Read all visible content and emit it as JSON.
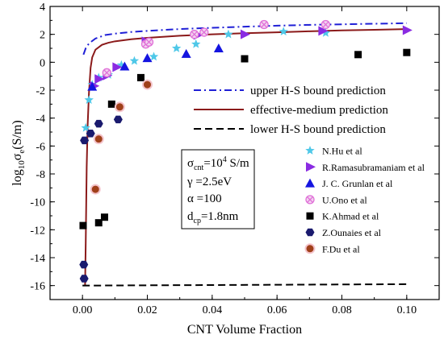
{
  "chart_data": {
    "type": "scatter",
    "xlabel": "CNT Volume Fraction",
    "ylabel": "log10 σe (S/m)",
    "ylabel_parts": {
      "base": "log",
      "sub1": "10",
      "sigma": "σ",
      "sub2": "e",
      "unit": "(S/m)"
    },
    "xlim": [
      -0.01,
      0.11
    ],
    "ylim": [
      -17,
      4
    ],
    "xticks": [
      "0.00",
      "0.02",
      "0.04",
      "0.06",
      "0.08",
      "0.10"
    ],
    "xtick_values": [
      0,
      0.02,
      0.04,
      0.06,
      0.08,
      0.1
    ],
    "yticks": [
      "-16",
      "-14",
      "-12",
      "-10",
      "-8",
      "-6",
      "-4",
      "-2",
      "0",
      "2",
      "4"
    ],
    "ytick_values": [
      -16,
      -14,
      -12,
      -10,
      -8,
      -6,
      -4,
      -2,
      0,
      2,
      4
    ],
    "lines": [
      {
        "name": "upper H-S bound prediction",
        "style": "dashdot",
        "color": "#1f1fd6",
        "x": [
          0.0003,
          0.001,
          0.002,
          0.004,
          0.007,
          0.01,
          0.015,
          0.02,
          0.03,
          0.04,
          0.05,
          0.06,
          0.07,
          0.08,
          0.09,
          0.1
        ],
        "y": [
          0.55,
          1.0,
          1.35,
          1.7,
          1.95,
          2.05,
          2.17,
          2.25,
          2.38,
          2.47,
          2.55,
          2.62,
          2.68,
          2.72,
          2.76,
          2.8
        ]
      },
      {
        "name": "effective-medium prediction",
        "style": "solid",
        "color": "#8b1a1a",
        "x": [
          0.0008,
          0.001,
          0.0013,
          0.0016,
          0.002,
          0.0025,
          0.003,
          0.004,
          0.006,
          0.008,
          0.01,
          0.015,
          0.02,
          0.03,
          0.04,
          0.05,
          0.06,
          0.07,
          0.08,
          0.09,
          0.1
        ],
        "y": [
          -16,
          -13,
          -7.5,
          -4.5,
          -2.2,
          -0.4,
          0.35,
          0.9,
          1.25,
          1.4,
          1.5,
          1.65,
          1.75,
          1.9,
          2.0,
          2.08,
          2.15,
          2.22,
          2.28,
          2.33,
          2.38
        ]
      },
      {
        "name": "lower H-S bound prediction",
        "style": "dashed",
        "color": "#000000",
        "x": [
          0,
          0.1
        ],
        "y": [
          -16.0,
          -15.9
        ]
      }
    ],
    "series": [
      {
        "name": "N.Hu et al",
        "marker": "star",
        "color": "#4fc8e8",
        "x": [
          0.001,
          0.002,
          0.003,
          0.005,
          0.008,
          0.012,
          0.016,
          0.022,
          0.029,
          0.035,
          0.045,
          0.062,
          0.075
        ],
        "y": [
          -4.7,
          -2.7,
          -1.6,
          -1.1,
          -0.9,
          -0.2,
          0.1,
          0.4,
          1.0,
          1.3,
          2.0,
          2.2,
          2.1
        ]
      },
      {
        "name": "R.Ramasubramaniam et al",
        "marker": "triangle-right",
        "color": "#8a2be2",
        "x": [
          0.0035,
          0.005,
          0.0075,
          0.0105,
          0.0195,
          0.0355,
          0.05,
          0.074,
          0.1
        ],
        "y": [
          -1.7,
          -1.2,
          -0.95,
          -0.35,
          1.5,
          1.95,
          2.0,
          2.25,
          2.3
        ]
      },
      {
        "name": "J. C. Grunlan et al",
        "marker": "triangle",
        "color": "#1515e0",
        "x": [
          0.003,
          0.013,
          0.02,
          0.032,
          0.042
        ],
        "y": [
          -1.75,
          -0.3,
          0.3,
          0.6,
          1.0
        ]
      },
      {
        "name": "U.Ono et al",
        "marker": "circle-x",
        "color": "#e070d8",
        "x": [
          0.0075,
          0.0195,
          0.0205,
          0.0345,
          0.0375,
          0.056,
          0.075
        ],
        "y": [
          -0.75,
          1.3,
          1.45,
          2.0,
          2.15,
          2.7,
          2.7
        ]
      },
      {
        "name": "K.Ahmad et al",
        "marker": "square",
        "color": "#000000",
        "x": [
          0.0002,
          0.005,
          0.0068,
          0.009,
          0.018,
          0.05,
          0.085,
          0.1
        ],
        "y": [
          -11.7,
          -11.5,
          -11.1,
          -3.0,
          -1.1,
          0.25,
          0.55,
          0.7
        ]
      },
      {
        "name": "Z.Ounaies et al",
        "marker": "hexagon",
        "color": "#1a1a6e",
        "x": [
          0.0004,
          0.0005,
          0.0006,
          0.0025,
          0.005,
          0.011
        ],
        "y": [
          -14.5,
          -15.5,
          -5.6,
          -5.1,
          -4.4,
          -4.1
        ]
      },
      {
        "name": "F.Du et al",
        "marker": "circle",
        "color": "#a0401a",
        "x": [
          0.004,
          0.005,
          0.0115,
          0.02
        ],
        "y": [
          -9.1,
          -5.5,
          -3.2,
          -1.6
        ]
      }
    ],
    "parameters": {
      "sigma": {
        "sym": "σ",
        "sub": "cnt",
        "eq": "=10",
        "sup": "4",
        "unit": " S/m"
      },
      "gamma": "γ =2.5eV",
      "alpha": "α =100",
      "dcp": {
        "base": "d",
        "sub": "cp",
        "rest": "=1.8nm"
      }
    }
  }
}
